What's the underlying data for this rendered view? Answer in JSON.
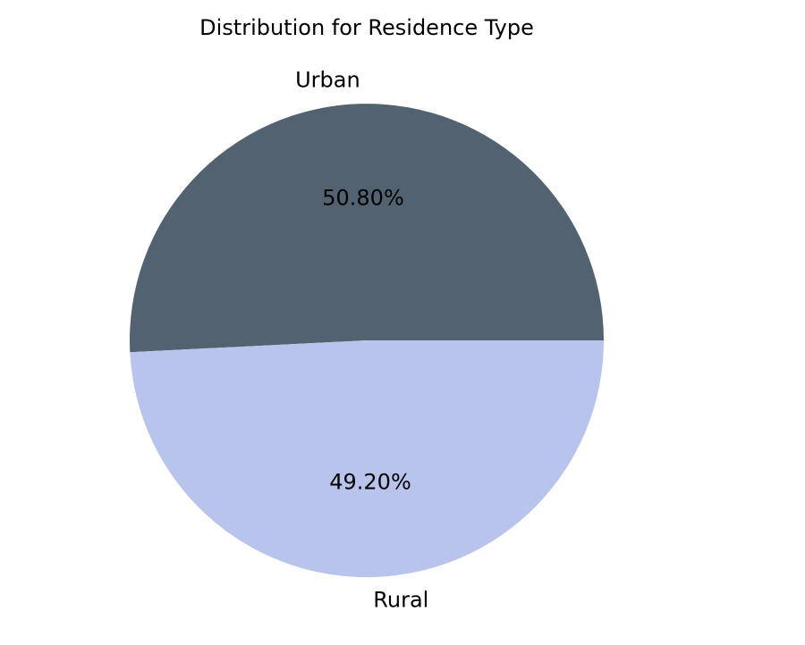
{
  "chart_data": {
    "type": "pie",
    "title": "Distribution for Residence Type",
    "labels": [
      "Urban",
      "Rural"
    ],
    "values": [
      50.8,
      49.2
    ],
    "pct_labels": [
      "50.80%",
      "49.20%"
    ],
    "colors": [
      "#536271",
      "#b8c4ec"
    ],
    "start_angle_deg": 0,
    "direction": "counterclockwise",
    "label_distance": 1.1,
    "pct_distance": 0.6,
    "background": "#ffffff",
    "text_color": "#000000",
    "legend": "none"
  }
}
